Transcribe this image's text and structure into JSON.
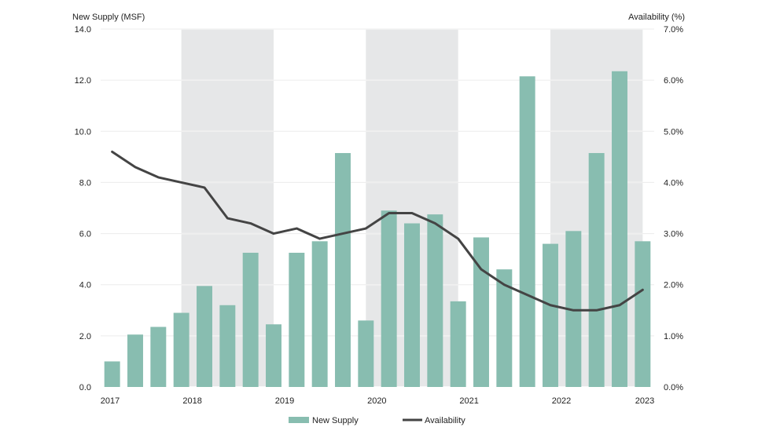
{
  "chart_data": {
    "type": "bar+line",
    "y_left": {
      "label": "New Supply (MSF)",
      "min": 0,
      "max": 14,
      "ticks": [
        "0.0",
        "2.0",
        "4.0",
        "6.0",
        "8.0",
        "10.0",
        "12.0",
        "14.0"
      ]
    },
    "y_right": {
      "label": "Availability (%)",
      "min": 0,
      "max": 7,
      "ticks": [
        "0.0%",
        "1.0%",
        "2.0%",
        "3.0%",
        "4.0%",
        "5.0%",
        "6.0%",
        "7.0%"
      ]
    },
    "x_ticks": [
      "2017",
      "2018",
      "2019",
      "2020",
      "2021",
      "2022",
      "2023"
    ],
    "shaded_years": [
      "2018",
      "2020",
      "2022"
    ],
    "grid": true,
    "legend_position": "bottom",
    "series": [
      {
        "name": "New Supply",
        "type": "bar",
        "color": "#88bdb0",
        "values": [
          1.0,
          2.05,
          2.35,
          2.9,
          3.95,
          3.2,
          5.25,
          2.45,
          5.25,
          5.7,
          9.15,
          2.6,
          6.9,
          6.4,
          6.75,
          3.35,
          5.85,
          4.6,
          12.15,
          5.6,
          6.1,
          9.15,
          12.35,
          5.7
        ]
      },
      {
        "name": "Availability",
        "type": "line",
        "color": "#444444",
        "values": [
          4.6,
          4.3,
          4.1,
          4.0,
          3.9,
          3.3,
          3.2,
          3.0,
          3.1,
          2.9,
          3.0,
          3.1,
          3.4,
          3.4,
          3.2,
          2.9,
          2.3,
          2.0,
          1.8,
          1.6,
          1.5,
          1.5,
          1.6,
          1.9
        ]
      }
    ]
  }
}
